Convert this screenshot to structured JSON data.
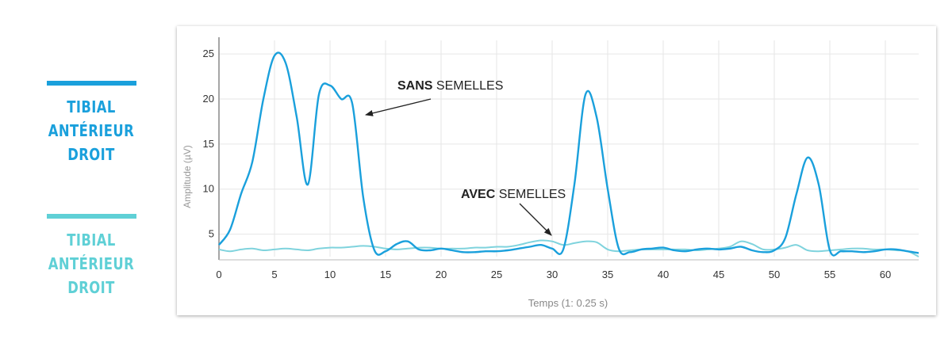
{
  "legend": [
    {
      "line1": "TIBIAL ANTÉRIEUR",
      "line2": "DROIT",
      "color": "#1aa0dc"
    },
    {
      "line1": "TIBIAL ANTÉRIEUR",
      "line2": "DROIT",
      "color": "#5fd0d6"
    }
  ],
  "annotations": {
    "sans": {
      "bold": "SANS",
      "rest": " SEMELLES"
    },
    "avec": {
      "bold": "AVEC",
      "rest": " SEMELLES"
    }
  },
  "chart_data": {
    "type": "line",
    "xlabel": "Temps (1: 0.25 s)",
    "ylabel": "Amplitude (µV)",
    "xlim": [
      0,
      63
    ],
    "ylim": [
      2.5,
      26.5
    ],
    "xticks": [
      0,
      5,
      10,
      15,
      20,
      25,
      30,
      35,
      40,
      45,
      50,
      55,
      60
    ],
    "yticks": [
      5,
      10,
      15,
      20,
      25
    ],
    "grid": true,
    "series": [
      {
        "color": "#1aa0dc",
        "x": [
          0,
          1,
          2,
          3,
          4,
          5,
          6,
          7,
          8,
          9,
          10,
          11,
          12,
          13,
          14,
          15,
          16,
          17,
          18,
          19,
          20,
          21,
          22,
          23,
          24,
          25,
          26,
          27,
          28,
          29,
          30,
          31,
          32,
          33,
          34,
          35,
          36,
          37,
          38,
          39,
          40,
          41,
          42,
          43,
          44,
          45,
          46,
          47,
          48,
          49,
          50,
          51,
          52,
          53,
          54,
          55,
          56,
          57,
          58,
          59,
          60,
          61,
          62,
          63
        ],
        "y": [
          3.8,
          5.5,
          9.5,
          13,
          20,
          24.8,
          24,
          18,
          10.5,
          20.5,
          21.5,
          20,
          19.5,
          9,
          3.2,
          3.1,
          3.9,
          4.2,
          3.3,
          3.2,
          3.4,
          3.2,
          3.0,
          3.0,
          3.1,
          3.1,
          3.2,
          3.4,
          3.6,
          3.8,
          3.4,
          3.3,
          10.5,
          20.5,
          18,
          10,
          3.4,
          3.0,
          3.3,
          3.4,
          3.5,
          3.2,
          3.1,
          3.3,
          3.4,
          3.3,
          3.4,
          3.6,
          3.2,
          3.0,
          3.2,
          4.6,
          9.5,
          13.5,
          10.5,
          3.2,
          3.1,
          3.1,
          3.0,
          3.1,
          3.3,
          3.3,
          3.1,
          2.9
        ]
      },
      {
        "color": "#7fd3dd",
        "x": [
          0,
          1,
          2,
          3,
          4,
          5,
          6,
          7,
          8,
          9,
          10,
          11,
          12,
          13,
          14,
          15,
          16,
          17,
          18,
          19,
          20,
          21,
          22,
          23,
          24,
          25,
          26,
          27,
          28,
          29,
          30,
          31,
          32,
          33,
          34,
          35,
          36,
          37,
          38,
          39,
          40,
          41,
          42,
          43,
          44,
          45,
          46,
          47,
          48,
          49,
          50,
          51,
          52,
          53,
          54,
          55,
          56,
          57,
          58,
          59,
          60,
          61,
          62,
          63
        ],
        "y": [
          3.3,
          3.1,
          3.3,
          3.4,
          3.2,
          3.3,
          3.4,
          3.3,
          3.2,
          3.4,
          3.5,
          3.5,
          3.6,
          3.7,
          3.6,
          3.4,
          3.3,
          3.4,
          3.5,
          3.5,
          3.4,
          3.4,
          3.4,
          3.5,
          3.5,
          3.6,
          3.6,
          3.8,
          4.1,
          4.3,
          4.2,
          3.8,
          4.0,
          4.2,
          4.1,
          3.3,
          3.1,
          3.2,
          3.3,
          3.3,
          3.3,
          3.3,
          3.3,
          3.2,
          3.3,
          3.4,
          3.6,
          4.2,
          3.9,
          3.3,
          3.3,
          3.5,
          3.8,
          3.2,
          3.1,
          3.2,
          3.3,
          3.4,
          3.4,
          3.3,
          3.3,
          3.2,
          3.1,
          2.5
        ]
      }
    ]
  }
}
